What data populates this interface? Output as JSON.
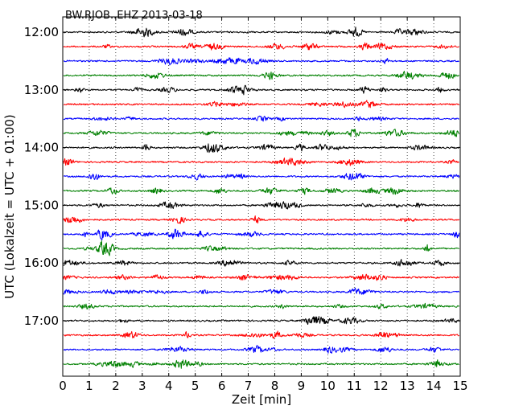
{
  "chart_data": {
    "type": "line",
    "title": "BW.RJOB..EHZ 2013-03-18",
    "xlabel": "Zeit  [min]",
    "ylabel": "UTC (Lokalzeit = UTC + 01:00)",
    "xlim": [
      0,
      15
    ],
    "x_ticks": [
      "0",
      "1",
      "2",
      "3",
      "4",
      "5",
      "6",
      "7",
      "8",
      "9",
      "10",
      "11",
      "12",
      "13",
      "14",
      "15"
    ],
    "y_ticks": [
      "12:00",
      "13:00",
      "14:00",
      "15:00",
      "16:00",
      "17:00"
    ],
    "y_tick_rows": [
      0,
      4,
      8,
      12,
      16,
      20
    ],
    "grid": "vertical dotted",
    "trace_colors": [
      "#000000",
      "#ff0000",
      "#0000ff",
      "#008000"
    ],
    "rows": [
      {
        "start": "12:00",
        "color": "#000000"
      },
      {
        "start": "12:15",
        "color": "#ff0000"
      },
      {
        "start": "12:30",
        "color": "#0000ff"
      },
      {
        "start": "12:45",
        "color": "#008000"
      },
      {
        "start": "13:00",
        "color": "#000000"
      },
      {
        "start": "13:15",
        "color": "#ff0000"
      },
      {
        "start": "13:30",
        "color": "#0000ff"
      },
      {
        "start": "13:45",
        "color": "#008000"
      },
      {
        "start": "14:00",
        "color": "#000000"
      },
      {
        "start": "14:15",
        "color": "#ff0000"
      },
      {
        "start": "14:30",
        "color": "#0000ff"
      },
      {
        "start": "14:45",
        "color": "#008000"
      },
      {
        "start": "15:00",
        "color": "#000000"
      },
      {
        "start": "15:15",
        "color": "#ff0000"
      },
      {
        "start": "15:30",
        "color": "#0000ff"
      },
      {
        "start": "15:45",
        "color": "#008000"
      },
      {
        "start": "16:00",
        "color": "#000000"
      },
      {
        "start": "16:15",
        "color": "#ff0000"
      },
      {
        "start": "16:30",
        "color": "#0000ff"
      },
      {
        "start": "16:45",
        "color": "#008000"
      },
      {
        "start": "17:00",
        "color": "#000000"
      },
      {
        "start": "17:15",
        "color": "#ff0000"
      },
      {
        "start": "17:30",
        "color": "#0000ff"
      },
      {
        "start": "17:45",
        "color": "#008000"
      }
    ]
  }
}
